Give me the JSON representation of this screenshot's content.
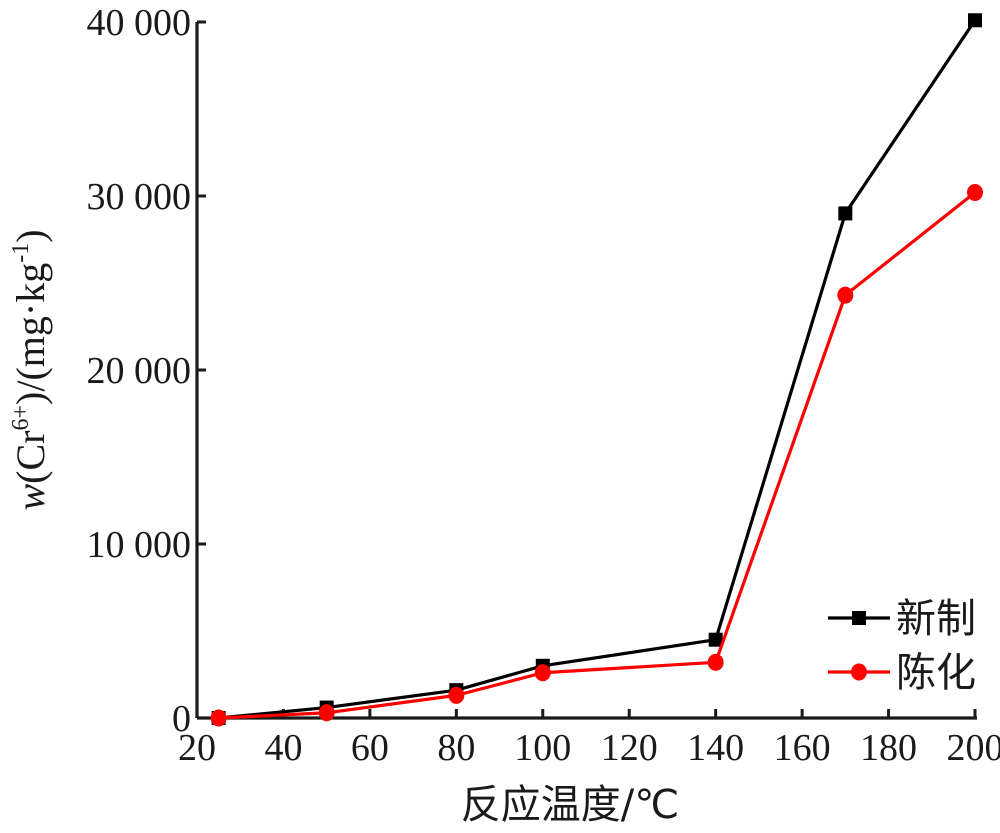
{
  "chart_data": {
    "type": "line",
    "title": "",
    "xlabel": "反应温度/℃",
    "ylabel": {
      "var": "w",
      "open": "(Cr",
      "sup": "6+",
      "mid": ")/(mg·kg",
      "sup2": "-1",
      "close": ")"
    },
    "xlim": [
      20,
      200
    ],
    "ylim": [
      0,
      40000
    ],
    "xticks": [
      20,
      40,
      60,
      80,
      100,
      120,
      140,
      160,
      180,
      200
    ],
    "yticks": [
      0,
      10000,
      20000,
      30000,
      40000
    ],
    "ytick_labels": [
      "0",
      "10 000",
      "20 000",
      "30 000",
      "40 000"
    ],
    "legend_position": "bottom-right",
    "grid": false,
    "series": [
      {
        "name": "新制",
        "color": "#000000",
        "marker": "square",
        "x": [
          25,
          50,
          80,
          100,
          140,
          170,
          200
        ],
        "y": [
          0,
          600,
          1600,
          3000,
          4500,
          29000,
          40100
        ]
      },
      {
        "name": "陈化",
        "color": "#ff0000",
        "marker": "circle",
        "x": [
          25,
          50,
          80,
          100,
          140,
          170,
          200
        ],
        "y": [
          0,
          300,
          1300,
          2600,
          3200,
          24300,
          30200
        ]
      }
    ]
  }
}
